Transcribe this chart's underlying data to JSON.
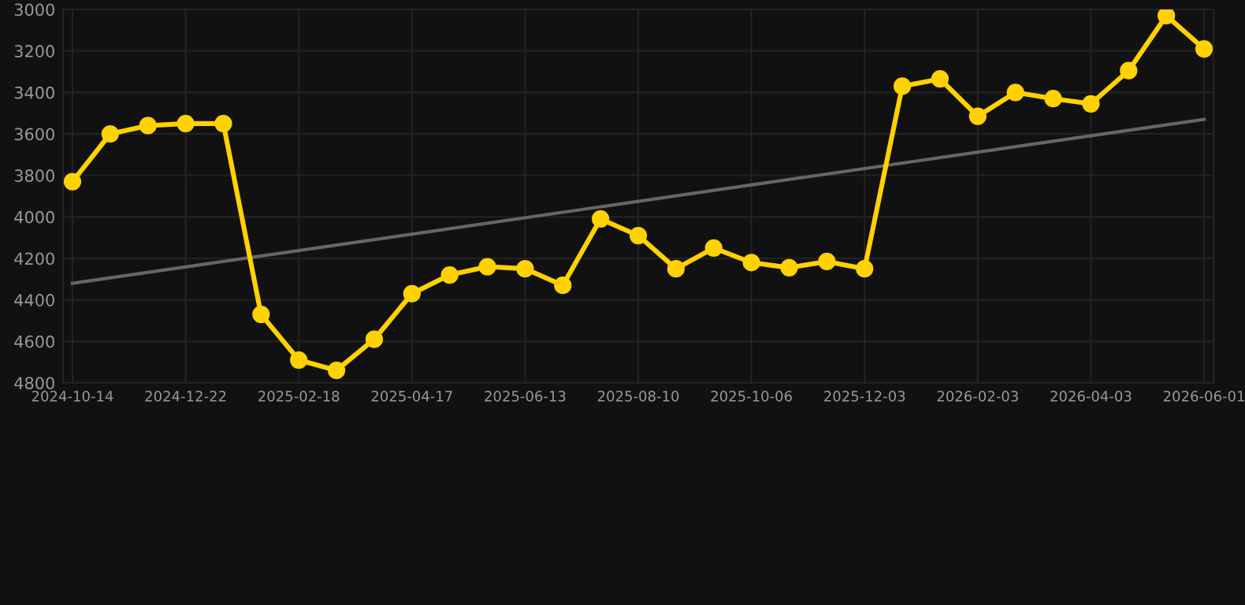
{
  "chart_data": {
    "type": "line",
    "categories": [
      "2024-10-14",
      null,
      null,
      "2024-12-22",
      null,
      null,
      "2025-02-18",
      null,
      null,
      "2025-04-17",
      null,
      null,
      "2025-06-13",
      null,
      null,
      "2025-08-10",
      null,
      null,
      "2025-10-06",
      null,
      null,
      "2025-12-03",
      null,
      null,
      "2026-02-03",
      null,
      null,
      "2026-04-03",
      null,
      null,
      "2026-06-01"
    ],
    "series": [
      {
        "color": "#ffd200",
        "marker": "circle",
        "values": [
          3830,
          3600,
          3560,
          3550,
          3550,
          4470,
          4690,
          4740,
          4590,
          4370,
          4280,
          4240,
          4250,
          4330,
          4010,
          4090,
          4250,
          4150,
          4220,
          4245,
          4215,
          4250,
          3370,
          3335,
          3515,
          3400,
          3430,
          3455,
          3295,
          3030,
          3190
        ]
      },
      {
        "type": "line",
        "color": "#666666",
        "marker": "none",
        "values": [
          4320,
          null,
          null,
          null,
          null,
          null,
          null,
          null,
          null,
          null,
          null,
          null,
          null,
          null,
          null,
          null,
          null,
          null,
          null,
          null,
          null,
          null,
          null,
          null,
          null,
          null,
          null,
          null,
          null,
          null,
          3530
        ]
      }
    ],
    "ylim": [
      4800,
      3000
    ],
    "yticks": [
      3000,
      3200,
      3400,
      3600,
      3800,
      4000,
      4200,
      4400,
      4600,
      4800
    ],
    "grid": true
  }
}
